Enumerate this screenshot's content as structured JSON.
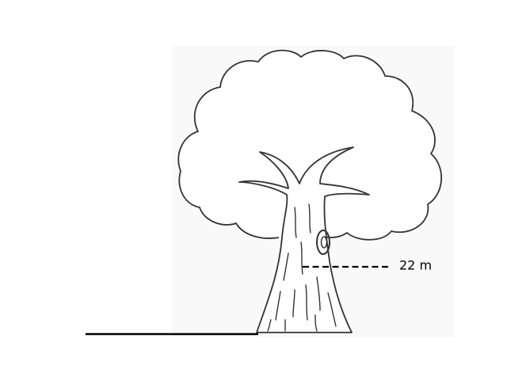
{
  "figure": {
    "measurement_label": "22 m"
  },
  "colors": {
    "background": "#ffffff",
    "ink": "#000000",
    "panel": "#f9f9f9",
    "outline": "#333333"
  }
}
